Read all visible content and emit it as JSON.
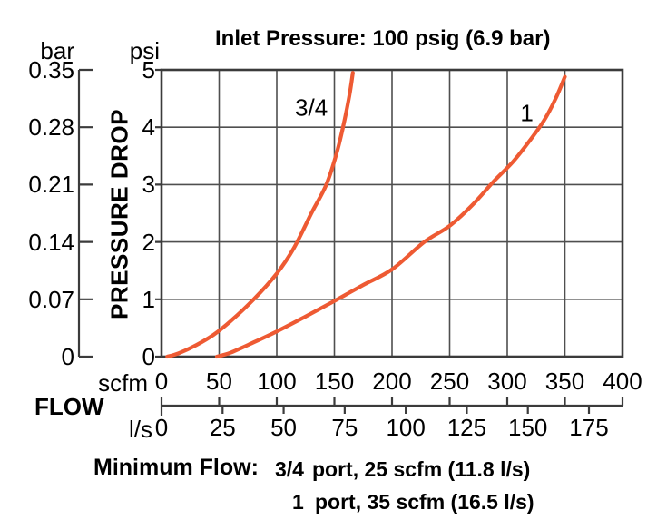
{
  "title": "Inlet Pressure: 100 psig (6.9 bar)",
  "chart_data": {
    "type": "line",
    "title": "Inlet Pressure: 100 psig (6.9 bar)",
    "grid": true,
    "y_axis": {
      "label": "PRESSURE DROP",
      "primary_unit": "psi",
      "primary_ticks": [
        "5",
        "4",
        "3",
        "2",
        "1",
        "0"
      ],
      "primary_range": [
        0,
        5
      ],
      "secondary_unit": "bar",
      "secondary_ticks": [
        "0.35",
        "0.28",
        "0.21",
        "0.14",
        "0.07",
        "0"
      ],
      "secondary_range": [
        0,
        0.35
      ]
    },
    "x_axis": {
      "label": "FLOW",
      "primary_unit": "scfm",
      "primary_ticks": [
        0,
        50,
        100,
        150,
        200,
        250,
        300,
        350,
        400
      ],
      "primary_range": [
        0,
        400
      ],
      "secondary_unit": "l/s",
      "secondary_ticks": [
        0,
        25,
        50,
        75,
        100,
        125,
        150,
        175
      ],
      "secondary_range": [
        0,
        175
      ]
    },
    "series": [
      {
        "name": "3/4",
        "label": "3/4",
        "label_at": [
          130,
          4.33
        ],
        "color": "#ee5a33",
        "points": [
          [
            5,
            0
          ],
          [
            15,
            0.06
          ],
          [
            30,
            0.2
          ],
          [
            45,
            0.38
          ],
          [
            60,
            0.62
          ],
          [
            80,
            1.0
          ],
          [
            100,
            1.45
          ],
          [
            115,
            1.9
          ],
          [
            130,
            2.5
          ],
          [
            143,
            3.0
          ],
          [
            152,
            3.55
          ],
          [
            158,
            4.05
          ],
          [
            163,
            4.55
          ],
          [
            166,
            4.95
          ]
        ]
      },
      {
        "name": "1",
        "label": "1",
        "label_at": [
          317,
          4.24
        ],
        "color": "#ee5a33",
        "points": [
          [
            48,
            0
          ],
          [
            60,
            0.07
          ],
          [
            80,
            0.25
          ],
          [
            100,
            0.44
          ],
          [
            125,
            0.7
          ],
          [
            150,
            0.97
          ],
          [
            175,
            1.25
          ],
          [
            200,
            1.52
          ],
          [
            228,
            2.0
          ],
          [
            250,
            2.28
          ],
          [
            270,
            2.65
          ],
          [
            288,
            3.05
          ],
          [
            305,
            3.4
          ],
          [
            320,
            3.78
          ],
          [
            332,
            4.12
          ],
          [
            342,
            4.5
          ],
          [
            350,
            4.88
          ]
        ]
      }
    ]
  },
  "minimum_flow": {
    "label": "Minimum Flow:",
    "rows": [
      {
        "port": "3/4",
        "text": "port, 25 scfm (11.8 l/s)"
      },
      {
        "port": "1",
        "text": "port, 35 scfm (16.5 l/s)"
      }
    ]
  },
  "colors": {
    "curve": "#ee5a33",
    "grid": "#4f4f4f",
    "frame": "#3b3b3b",
    "text": "#000000"
  }
}
